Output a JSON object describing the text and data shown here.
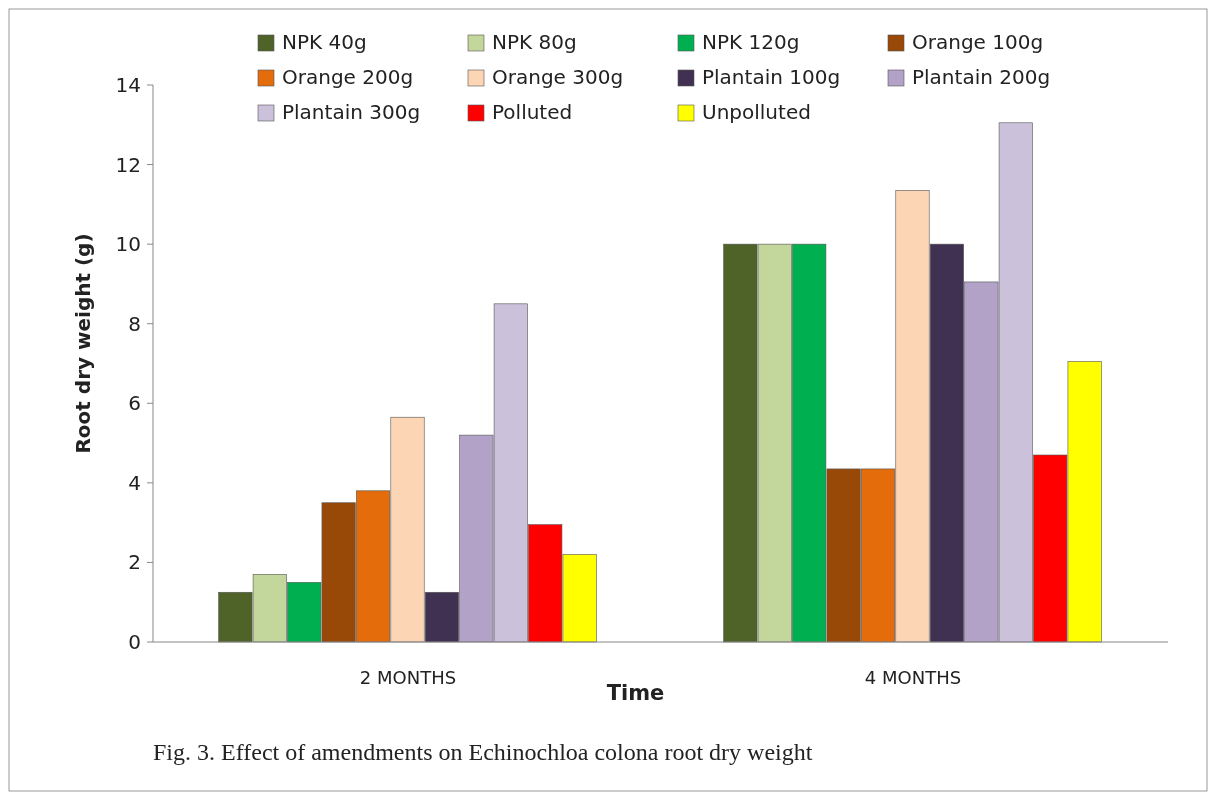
{
  "chart_data": {
    "type": "bar",
    "title": "Fig. 3. Effect of amendments on Echinochloa colona root dry weight",
    "xlabel": "Time",
    "ylabel": "Root dry weight  (g)",
    "categories": [
      "2 MONTHS",
      "4 MONTHS"
    ],
    "ylim": [
      0,
      14
    ],
    "yticks": [
      0,
      2,
      4,
      6,
      8,
      10,
      12,
      14
    ],
    "grid": false,
    "legend": "top",
    "series": [
      {
        "name": "NPK 40g",
        "color": "#4f6228",
        "values": [
          1.25,
          10
        ]
      },
      {
        "name": "NPK 80g",
        "color": "#c3d69b",
        "values": [
          1.7,
          10
        ]
      },
      {
        "name": "NPK 120g",
        "color": "#00b050",
        "values": [
          1.5,
          10
        ]
      },
      {
        "name": "Orange 100g",
        "color": "#984807",
        "values": [
          3.5,
          4.35
        ]
      },
      {
        "name": "Orange 200g",
        "color": "#e46c0a",
        "values": [
          3.8,
          4.35
        ]
      },
      {
        "name": "Orange 300g",
        "color": "#fcd5b5",
        "values": [
          5.65,
          11.35
        ]
      },
      {
        "name": "Plantain 100g",
        "color": "#403152",
        "values": [
          1.25,
          10
        ]
      },
      {
        "name": "Plantain 200g",
        "color": "#b3a2c7",
        "values": [
          5.2,
          9.05
        ]
      },
      {
        "name": "Plantain 300g",
        "color": "#ccc1da",
        "values": [
          8.5,
          13.05
        ]
      },
      {
        "name": "Polluted",
        "color": "#ff0000",
        "values": [
          2.95,
          4.7
        ]
      },
      {
        "name": "Unpolluted",
        "color": "#ffff00",
        "values": [
          2.2,
          7.05
        ]
      }
    ]
  }
}
